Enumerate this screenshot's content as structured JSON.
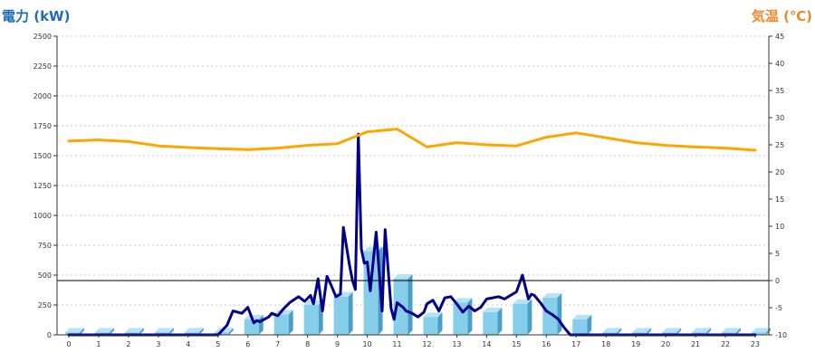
{
  "chart_data": {
    "type": "bar",
    "title_left": "電力 (kW)",
    "title_right": "気温 (℃)",
    "x": [
      "0",
      "1",
      "2",
      "3",
      "4",
      "5",
      "6",
      "7",
      "8",
      "9",
      "10",
      "11",
      "12",
      "13",
      "14",
      "15",
      "16",
      "17",
      "18",
      "19",
      "20",
      "21",
      "22",
      "23"
    ],
    "y_left": {
      "ylim": [
        0,
        2500
      ],
      "ticks": [
        "0",
        "250",
        "500",
        "750",
        "1000",
        "1250",
        "1500",
        "1750",
        "2000",
        "2250",
        "2500"
      ]
    },
    "y_right": {
      "ylim": [
        -10,
        45
      ],
      "ticks": [
        "-10",
        "-5",
        "0",
        "5",
        "10",
        "15",
        "20",
        "25",
        "30",
        "35",
        "40",
        "45"
      ]
    },
    "grid": true,
    "reference_line": {
      "axis": "right",
      "value": 0
    },
    "series": [
      {
        "kind": "bar",
        "axis": "left",
        "color": "#87ceeb",
        "values": [
          20,
          20,
          20,
          20,
          20,
          20,
          130,
          170,
          250,
          320,
          700,
          470,
          150,
          270,
          190,
          260,
          310,
          130,
          20,
          20,
          20,
          20,
          20,
          20
        ]
      },
      {
        "kind": "line",
        "axis": "left",
        "color": "#00008b",
        "x": [
          0,
          1,
          2,
          3,
          4,
          5,
          5.3,
          5.5,
          5.8,
          6.0,
          6.2,
          6.3,
          6.4,
          6.7,
          6.8,
          7.0,
          7.2,
          7.4,
          7.7,
          7.9,
          8.1,
          8.2,
          8.35,
          8.5,
          8.65,
          8.8,
          8.95,
          9.1,
          9.2,
          9.4,
          9.5,
          9.6,
          9.7,
          9.8,
          9.9,
          10.0,
          10.1,
          10.3,
          10.5,
          10.6,
          10.8,
          10.9,
          11.0,
          11.1,
          11.2,
          11.3,
          11.5,
          11.7,
          11.9,
          12.0,
          12.2,
          12.4,
          12.6,
          12.8,
          13.0,
          13.2,
          13.4,
          13.6,
          13.8,
          14.0,
          14.2,
          14.4,
          14.6,
          14.8,
          15.0,
          15.2,
          15.4,
          15.5,
          15.6,
          15.8,
          16.0,
          16.2,
          16.4,
          16.6,
          16.8,
          17.0,
          17.2,
          17.3,
          17.5,
          18,
          19,
          20,
          21,
          22,
          23
        ],
        "values": [
          0,
          0,
          0,
          0,
          0,
          0,
          80,
          200,
          180,
          230,
          100,
          120,
          110,
          150,
          180,
          160,
          220,
          270,
          320,
          280,
          330,
          260,
          470,
          200,
          490,
          410,
          320,
          340,
          900,
          590,
          460,
          380,
          1680,
          720,
          600,
          610,
          370,
          860,
          200,
          880,
          220,
          130,
          270,
          250,
          230,
          200,
          180,
          150,
          190,
          260,
          290,
          200,
          310,
          320,
          260,
          190,
          240,
          200,
          230,
          300,
          310,
          320,
          300,
          330,
          360,
          500,
          300,
          340,
          330,
          270,
          200,
          170,
          130,
          60,
          0,
          0,
          0,
          0,
          0,
          0,
          0,
          0,
          0,
          0,
          0
        ]
      },
      {
        "kind": "line",
        "axis": "right",
        "color": "#ffa500",
        "values": [
          25.7,
          25.9,
          25.6,
          24.8,
          24.5,
          24.3,
          24.1,
          24.4,
          24.9,
          25.2,
          27.4,
          27.9,
          24.6,
          25.4,
          25.0,
          24.8,
          26.4,
          27.2,
          26.3,
          25.4,
          24.9,
          24.6,
          24.4,
          24.0
        ]
      }
    ]
  }
}
